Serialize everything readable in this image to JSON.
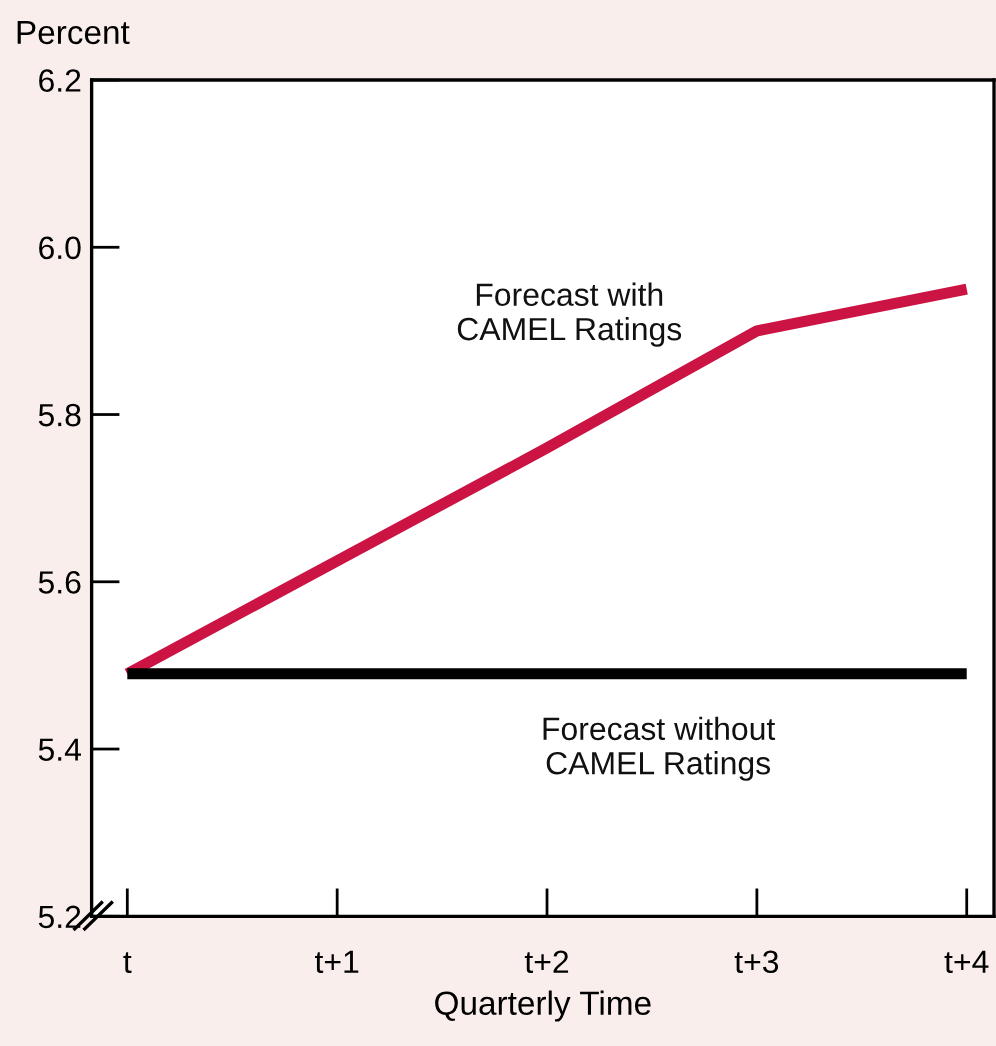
{
  "chart_data": {
    "type": "line",
    "xlabel": "Quarterly Time",
    "ylabel": "Percent",
    "categories": [
      "t",
      "t+1",
      "t+2",
      "t+3",
      "t+4"
    ],
    "series": [
      {
        "name": "Forecast with CAMEL Ratings",
        "color": "#cc1444",
        "values": [
          5.49,
          5.625,
          5.76,
          5.9,
          5.95
        ]
      },
      {
        "name": "Forecast without CAMEL Ratings",
        "color": "#000000",
        "values": [
          5.49,
          5.49,
          5.49,
          5.49,
          5.49
        ]
      }
    ],
    "ylim": [
      5.2,
      6.2
    ],
    "yticks": [
      5.2,
      5.4,
      5.6,
      5.8,
      {
        "value": 6,
        "label": "6.0"
      },
      6.2
    ],
    "grid": false,
    "legend": false,
    "marker": "none",
    "line_style": "solid"
  }
}
